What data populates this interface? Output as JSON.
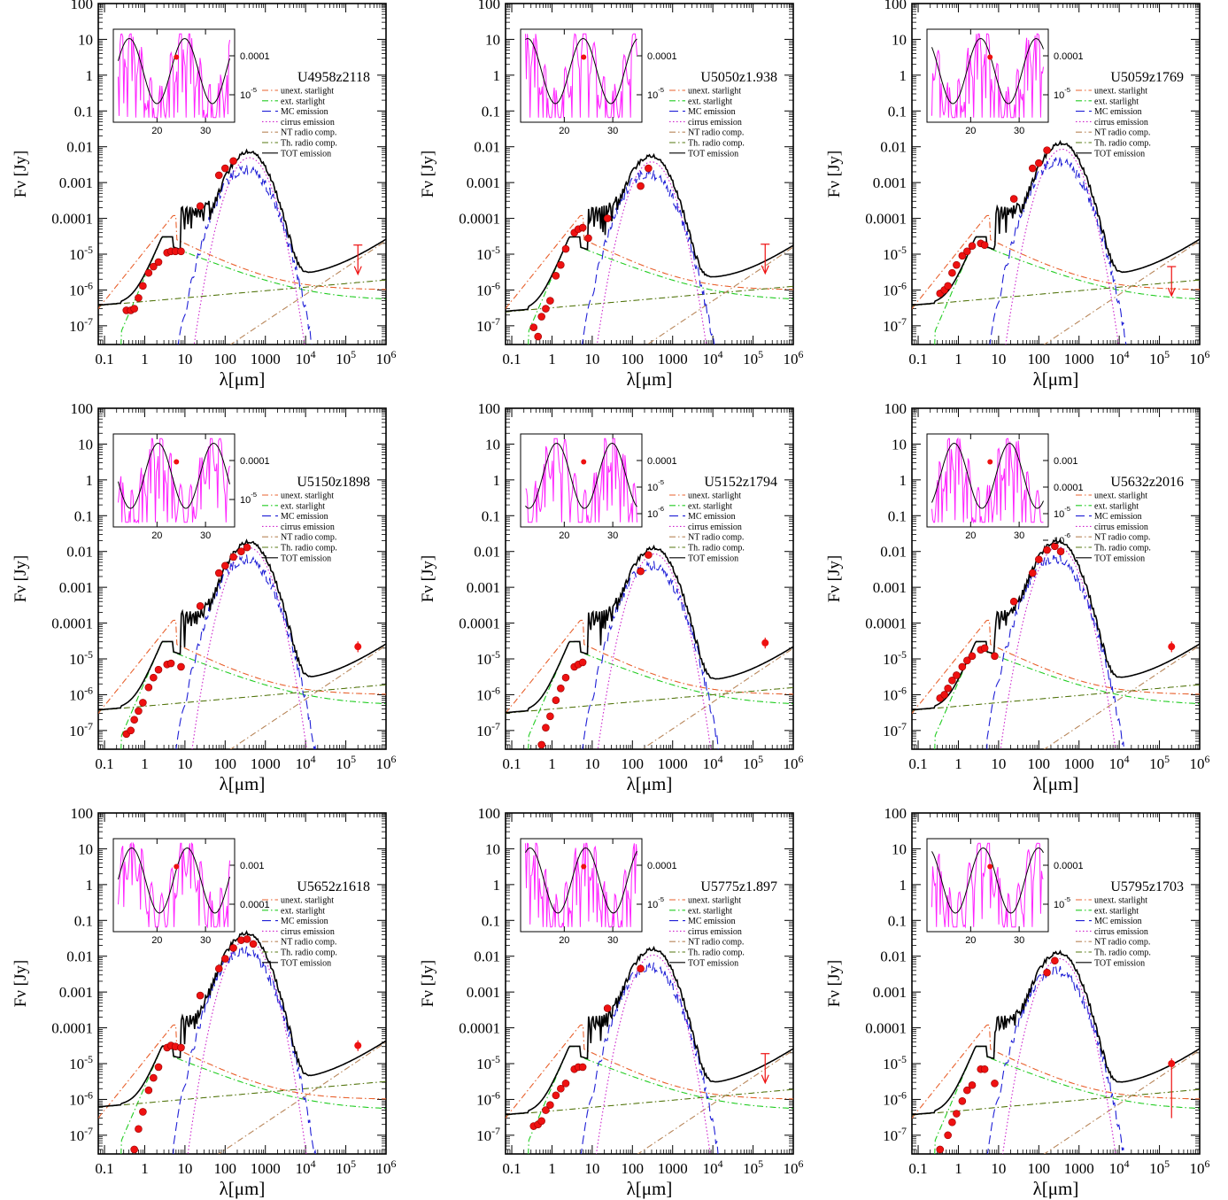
{
  "figure": {
    "x_label": "λ[μm]",
    "y_label": "Fν [Jy]",
    "x_ticks": [
      "0.1",
      "1",
      "10",
      "100",
      "1000",
      "10⁴",
      "10⁵",
      "10⁶"
    ],
    "y_ticks": [
      "10⁻⁷",
      "10⁻⁶",
      "10⁻⁵",
      "0.0001",
      "0.001",
      "0.01",
      "0.1",
      "1",
      "10",
      "100"
    ],
    "legend": [
      {
        "label": "unext. starlight",
        "color": "#e8602c",
        "dash": "dashdot"
      },
      {
        "label": "ext. starlight",
        "color": "#22cc22",
        "dash": "dashdot"
      },
      {
        "label": "MC emission",
        "color": "#1f1fd6",
        "dash": "longdash"
      },
      {
        "label": "cirrus emission",
        "color": "#cc22cc",
        "dash": "dotted"
      },
      {
        "label": "NT radio comp.",
        "color": "#b8865a",
        "dash": "dashdot"
      },
      {
        "label": "Th. radio comp.",
        "color": "#557711",
        "dash": "dashdot"
      },
      {
        "label": "TOT emission",
        "color": "#000000",
        "dash": "solid"
      }
    ],
    "colors": {
      "data": "#ee1111",
      "irs_spectrum": "#ff22ff",
      "model": "#000000"
    }
  },
  "chart_data": [
    {
      "type": "line",
      "name": "U4958z2118",
      "scale": "log-log",
      "xlim": [
        0.07,
        1000000
      ],
      "ylim": [
        3e-08,
        100
      ],
      "peak": {
        "x": 400,
        "y": 0.0055
      },
      "radio_norm": 3e-06,
      "radio_limit": true,
      "photometry": [
        [
          0.35,
          2.7e-07
        ],
        [
          0.45,
          2.7e-07
        ],
        [
          0.55,
          3e-07
        ],
        [
          0.7,
          6e-07
        ],
        [
          0.9,
          1.3e-06
        ],
        [
          1.25,
          3e-06
        ],
        [
          1.65,
          4.5e-06
        ],
        [
          2.2,
          6e-06
        ],
        [
          3.6,
          1.1e-05
        ],
        [
          4.5,
          1.2e-05
        ],
        [
          5.8,
          1.2e-05
        ],
        [
          8,
          1.2e-05
        ],
        [
          24,
          0.00022
        ],
        [
          70,
          0.0016
        ],
        [
          100,
          0.0025
        ],
        [
          160,
          0.004
        ]
      ],
      "upper_limits": [
        [
          200000,
          1.8e-05
        ]
      ],
      "inset": {
        "xticks": [
          "20",
          "30"
        ],
        "yticks": [
          "0.0001",
          "10⁻⁵"
        ]
      }
    },
    {
      "type": "line",
      "name": "U5050z1.938",
      "scale": "log-log",
      "xlim": [
        0.07,
        1000000
      ],
      "ylim": [
        3e-08,
        100
      ],
      "peak": {
        "x": 300,
        "y": 0.0042
      },
      "radio_norm": 2e-06,
      "radio_limit": true,
      "photometry": [
        [
          0.35,
          9e-08
        ],
        [
          0.45,
          5e-08
        ],
        [
          0.55,
          1.8e-07
        ],
        [
          0.7,
          3e-07
        ],
        [
          0.9,
          5e-07
        ],
        [
          1.25,
          2.5e-06
        ],
        [
          1.65,
          5e-06
        ],
        [
          2.2,
          1.4e-05
        ],
        [
          3.6,
          4e-05
        ],
        [
          4.5,
          5e-05
        ],
        [
          5.8,
          5.5e-05
        ],
        [
          8,
          2.8e-05
        ],
        [
          24,
          0.0001
        ],
        [
          160,
          0.0008
        ],
        [
          250,
          0.0025
        ]
      ],
      "upper_limits": [
        [
          200000,
          1.9e-05
        ]
      ],
      "inset": {
        "xticks": [
          "20",
          "30"
        ],
        "yticks": [
          "0.0001",
          "10⁻⁵"
        ]
      }
    },
    {
      "type": "line",
      "name": "U5059z1769",
      "scale": "log-log",
      "xlim": [
        0.07,
        1000000
      ],
      "ylim": [
        3e-08,
        100
      ],
      "peak": {
        "x": 380,
        "y": 0.0095
      },
      "radio_norm": 3e-06,
      "radio_limit": false,
      "photometry": [
        [
          0.35,
          8e-07
        ],
        [
          0.45,
          1e-06
        ],
        [
          0.55,
          1.3e-06
        ],
        [
          0.7,
          3e-06
        ],
        [
          0.9,
          5e-06
        ],
        [
          1.25,
          9e-06
        ],
        [
          1.65,
          1.2e-05
        ],
        [
          2.2,
          1.7e-05
        ],
        [
          3.6,
          2e-05
        ],
        [
          4.5,
          1.8e-05
        ],
        [
          24,
          0.00035
        ],
        [
          70,
          0.0025
        ],
        [
          100,
          0.0035
        ],
        [
          160,
          0.008
        ]
      ],
      "upper_limits": [
        [
          200000,
          4.5e-06
        ]
      ],
      "inset": {
        "xticks": [
          "20",
          "30"
        ],
        "yticks": [
          "0.0001",
          "10⁻⁵"
        ]
      }
    },
    {
      "type": "line",
      "name": "U5150z1898",
      "scale": "log-log",
      "xlim": [
        0.07,
        1000000
      ],
      "ylim": [
        3e-08,
        100
      ],
      "peak": {
        "x": 400,
        "y": 0.014
      },
      "radio_norm": 3e-06,
      "radio_limit": false,
      "photometry": [
        [
          0.35,
          8e-08
        ],
        [
          0.45,
          1e-07
        ],
        [
          0.55,
          2e-07
        ],
        [
          0.7,
          3.5e-07
        ],
        [
          0.9,
          6e-07
        ],
        [
          1.25,
          1.6e-06
        ],
        [
          1.65,
          3e-06
        ],
        [
          2.2,
          5e-06
        ],
        [
          3.6,
          7e-06
        ],
        [
          4.5,
          7.5e-06
        ],
        [
          8,
          6e-06
        ],
        [
          24,
          0.0003
        ],
        [
          70,
          0.0025
        ],
        [
          100,
          0.004
        ],
        [
          160,
          0.007
        ],
        [
          250,
          0.01
        ],
        [
          350,
          0.013
        ]
      ],
      "upper_limits": [],
      "radio_point": [
        200000,
        2.2e-05
      ],
      "inset": {
        "xticks": [
          "20",
          "30"
        ],
        "yticks": [
          "0.0001",
          "10⁻⁵"
        ]
      }
    },
    {
      "type": "line",
      "name": "U5152z1794",
      "scale": "log-log",
      "xlim": [
        0.07,
        1000000
      ],
      "ylim": [
        3e-08,
        100
      ],
      "peak": {
        "x": 350,
        "y": 0.0095
      },
      "radio_norm": 2.5e-06,
      "radio_limit": false,
      "photometry": [
        [
          0.55,
          4e-08
        ],
        [
          0.7,
          1.2e-07
        ],
        [
          0.9,
          2.5e-07
        ],
        [
          1.25,
          7e-07
        ],
        [
          1.65,
          1.5e-06
        ],
        [
          2.2,
          3e-06
        ],
        [
          3.6,
          6e-06
        ],
        [
          4.5,
          7e-06
        ],
        [
          5.8,
          8e-06
        ],
        [
          160,
          0.0028
        ],
        [
          250,
          0.008
        ]
      ],
      "upper_limits": [],
      "radio_point": [
        200000,
        2.8e-05
      ],
      "inset": {
        "xticks": [
          "20",
          "30"
        ],
        "yticks": [
          "0.0001",
          "10⁻⁵",
          "10⁻⁶"
        ]
      }
    },
    {
      "type": "line",
      "name": "U5632z2016",
      "scale": "log-log",
      "xlim": [
        0.07,
        1000000
      ],
      "ylim": [
        3e-08,
        100
      ],
      "peak": {
        "x": 300,
        "y": 0.015
      },
      "radio_norm": 3e-06,
      "radio_limit": false,
      "photometry": [
        [
          0.35,
          8e-07
        ],
        [
          0.45,
          1e-06
        ],
        [
          0.55,
          1.5e-06
        ],
        [
          0.7,
          2.5e-06
        ],
        [
          0.9,
          3.5e-06
        ],
        [
          1.25,
          6e-06
        ],
        [
          1.65,
          9e-06
        ],
        [
          2.2,
          1.2e-05
        ],
        [
          3.6,
          1.8e-05
        ],
        [
          4.5,
          2e-05
        ],
        [
          8,
          1.2e-05
        ],
        [
          24,
          0.0004
        ],
        [
          70,
          0.0025
        ],
        [
          100,
          0.006
        ],
        [
          160,
          0.011
        ],
        [
          250,
          0.014
        ],
        [
          350,
          0.01
        ]
      ],
      "upper_limits": [],
      "radio_point": [
        200000,
        2.2e-05
      ],
      "inset": {
        "xticks": [
          "20",
          "30"
        ],
        "yticks": [
          "0.001",
          "0.0001",
          "10⁻⁵",
          "10⁻⁶"
        ]
      }
    },
    {
      "type": "line",
      "name": "U5652z1618",
      "scale": "log-log",
      "xlim": [
        0.07,
        1000000
      ],
      "ylim": [
        3e-08,
        100
      ],
      "peak": {
        "x": 350,
        "y": 0.033
      },
      "radio_norm": 5e-06,
      "radio_limit": false,
      "photometry": [
        [
          0.55,
          4e-08
        ],
        [
          0.7,
          1.5e-07
        ],
        [
          0.9,
          4.5e-07
        ],
        [
          1.25,
          1.8e-06
        ],
        [
          1.65,
          4e-06
        ],
        [
          2.2,
          8e-06
        ],
        [
          3.6,
          2.8e-05
        ],
        [
          4.5,
          3.2e-05
        ],
        [
          5.8,
          3e-05
        ],
        [
          8,
          2.8e-05
        ],
        [
          24,
          0.0008
        ],
        [
          70,
          0.0045
        ],
        [
          100,
          0.0085
        ],
        [
          160,
          0.017
        ],
        [
          250,
          0.028
        ],
        [
          350,
          0.03
        ],
        [
          500,
          0.022
        ]
      ],
      "upper_limits": [],
      "radio_point": [
        200000,
        3.2e-05
      ],
      "inset": {
        "xticks": [
          "20",
          "30"
        ],
        "yticks": [
          "0.001",
          "0.0001"
        ]
      }
    },
    {
      "type": "line",
      "name": "U5775z1.897",
      "scale": "log-log",
      "xlim": [
        0.07,
        1000000
      ],
      "ylim": [
        3e-08,
        100
      ],
      "peak": {
        "x": 330,
        "y": 0.012
      },
      "radio_norm": 3e-06,
      "radio_limit": true,
      "photometry": [
        [
          0.35,
          1.8e-07
        ],
        [
          0.45,
          2e-07
        ],
        [
          0.55,
          2.5e-07
        ],
        [
          0.7,
          5e-07
        ],
        [
          0.9,
          7e-07
        ],
        [
          1.25,
          1.3e-06
        ],
        [
          1.65,
          2e-06
        ],
        [
          2.2,
          2.8e-06
        ],
        [
          3.6,
          7e-06
        ],
        [
          4.5,
          8e-06
        ],
        [
          5.8,
          8e-06
        ],
        [
          24,
          0.00035
        ],
        [
          160,
          0.0045
        ]
      ],
      "upper_limits": [
        [
          200000,
          1.9e-05
        ]
      ],
      "inset": {
        "xticks": [
          "20",
          "30"
        ],
        "yticks": [
          "0.0001",
          "10⁻⁵"
        ]
      }
    },
    {
      "type": "line",
      "name": "U5795z1703",
      "scale": "log-log",
      "xlim": [
        0.07,
        1000000
      ],
      "ylim": [
        3e-08,
        100
      ],
      "peak": {
        "x": 320,
        "y": 0.0095
      },
      "radio_norm": 3e-06,
      "radio_limit": false,
      "photometry": [
        [
          0.35,
          4e-08
        ],
        [
          0.55,
          1e-07
        ],
        [
          0.7,
          2.3e-07
        ],
        [
          0.9,
          4e-07
        ],
        [
          1.25,
          9e-07
        ],
        [
          1.65,
          1.8e-06
        ],
        [
          2.2,
          2.5e-06
        ],
        [
          3.6,
          7e-06
        ],
        [
          4.5,
          7e-06
        ],
        [
          8,
          2.8e-06
        ],
        [
          160,
          0.0035
        ],
        [
          250,
          0.0075
        ]
      ],
      "upper_limits": [],
      "radio_point": [
        200000,
        1e-05
      ],
      "radio_err_low": 3e-07,
      "inset": {
        "xticks": [
          "20",
          "30"
        ],
        "yticks": [
          "0.0001",
          "10⁻⁵"
        ]
      }
    }
  ]
}
